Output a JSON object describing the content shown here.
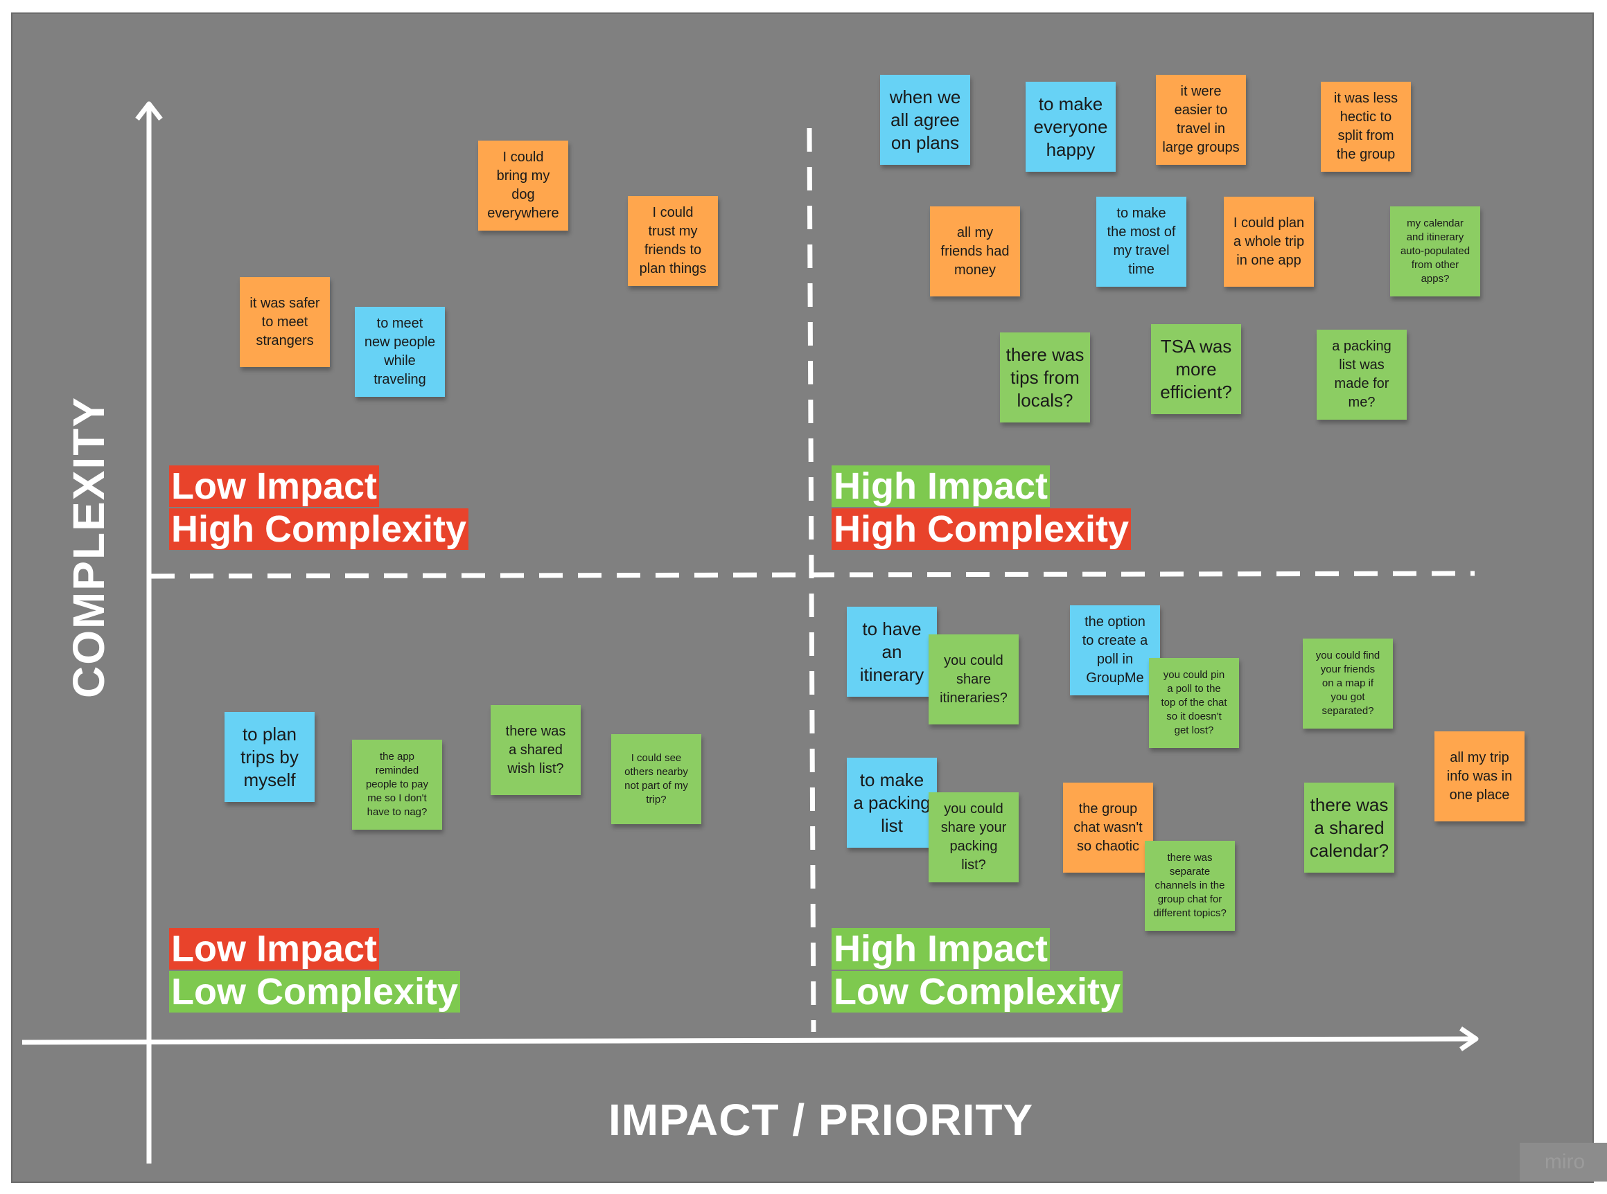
{
  "axes": {
    "x_title": "IMPACT / PRIORITY",
    "y_title": "COMPLEXITY"
  },
  "quadrants": {
    "top_left": {
      "line1": "Low Impact",
      "line2": "High Complexity"
    },
    "top_right": {
      "line1": "High Impact",
      "line2": "High Complexity"
    },
    "bottom_left": {
      "line1": "Low Impact",
      "line2": "Low Complexity"
    },
    "bottom_right": {
      "line1": "High Impact",
      "line2": "Low Complexity"
    }
  },
  "colors": {
    "board": "#808080",
    "label_red": "#e8432b",
    "label_green": "#7ec94f",
    "note_orange": "#ffa64d",
    "note_blue": "#67d2f5",
    "note_green": "#8ccd63"
  },
  "notes": [
    {
      "text": "I could\nbring my\ndog\neverywhere",
      "color": "orange"
    },
    {
      "text": "I could\ntrust my\nfriends to\nplan things",
      "color": "orange"
    },
    {
      "text": "it was safer\nto meet\nstrangers",
      "color": "orange"
    },
    {
      "text": "to meet\nnew people\nwhile\ntraveling",
      "color": "blue"
    },
    {
      "text": "when we\nall agree\non plans",
      "color": "blue"
    },
    {
      "text": "to make\neveryone\nhappy",
      "color": "blue"
    },
    {
      "text": "it were\neasier to\ntravel in\nlarge groups",
      "color": "orange"
    },
    {
      "text": "it was less\nhectic to\nsplit from\nthe group",
      "color": "orange"
    },
    {
      "text": "all my\nfriends had\nmoney",
      "color": "orange"
    },
    {
      "text": "to make\nthe most of\nmy travel\ntime",
      "color": "blue"
    },
    {
      "text": "I could plan\na whole trip\nin one app",
      "color": "orange"
    },
    {
      "text": "my calendar\nand itinerary\nauto-populated\nfrom other\napps?",
      "color": "green"
    },
    {
      "text": "there was\ntips from\nlocals?",
      "color": "green"
    },
    {
      "text": "TSA was\nmore\nefficient?",
      "color": "green"
    },
    {
      "text": "a packing\nlist was\nmade for\nme?",
      "color": "green"
    },
    {
      "text": "to plan\ntrips by\nmyself",
      "color": "blue"
    },
    {
      "text": "the app\nreminded\npeople to pay\nme so I don't\nhave to nag?",
      "color": "green"
    },
    {
      "text": "there was\na shared\nwish list?",
      "color": "green"
    },
    {
      "text": "I could see\nothers nearby\nnot part of my\ntrip?",
      "color": "green"
    },
    {
      "text": "to have\nan\nitinerary",
      "color": "blue"
    },
    {
      "text": "you could\nshare\nitineraries?",
      "color": "green"
    },
    {
      "text": "the option\nto create a\npoll in\nGroupMe",
      "color": "blue"
    },
    {
      "text": "you could pin\na poll to the\ntop of the chat\nso it doesn't\nget lost?",
      "color": "green"
    },
    {
      "text": "you could find\nyour friends\non a map if\nyou got\nseparated?",
      "color": "green"
    },
    {
      "text": "all my trip\ninfo was in\none place",
      "color": "orange"
    },
    {
      "text": "to make\na packing\nlist",
      "color": "blue"
    },
    {
      "text": "you could\nshare your\npacking\nlist?",
      "color": "green"
    },
    {
      "text": "the group\nchat wasn't\nso chaotic",
      "color": "orange"
    },
    {
      "text": "there was\nseparate\nchannels in the\ngroup chat for\ndifferent topics?",
      "color": "green"
    },
    {
      "text": "there was\na shared\ncalendar?",
      "color": "green"
    }
  ],
  "watermark": "miro"
}
